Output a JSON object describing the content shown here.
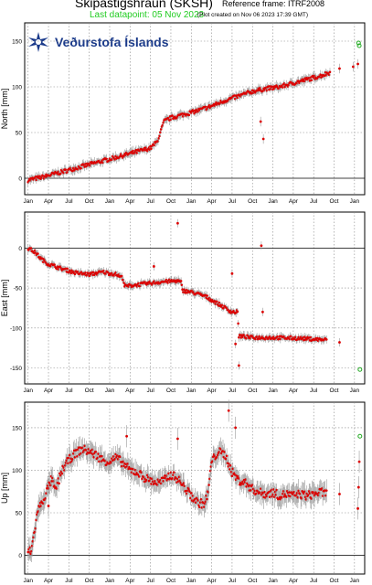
{
  "header": {
    "title": "Skipastigshraun (SKSH)",
    "reference_frame": "Reference frame: ITRF2008",
    "last_datapoint": "Last datapoint: 05 Nov 2023",
    "plot_created": "(Plot created on Nov 06 2023 17:39 GMT)",
    "logo_text": "Veðurstofa Íslands"
  },
  "colors": {
    "data": "#dd0000",
    "errorbar": "#9a9a9a",
    "latest": "#22aa22",
    "logo": "#1a3a8a",
    "last_datapoint_text": "#22cc22"
  },
  "chart_data": [
    {
      "type": "scatter",
      "ylabel": "North [mm]",
      "x_ticks": [
        "Jan",
        "Apr",
        "Jul",
        "Oct",
        "Jan",
        "Apr",
        "Jul",
        "Oct",
        "Jan",
        "Apr",
        "Jul",
        "Oct"
      ],
      "y_ticks": [
        0,
        50,
        100,
        150
      ],
      "ylim": [
        -18,
        170
      ],
      "grid": true,
      "series_points": [
        [
          0,
          -2
        ],
        [
          2,
          1
        ],
        [
          4,
          5
        ],
        [
          6,
          9
        ],
        [
          8,
          13
        ],
        [
          10,
          17
        ],
        [
          12,
          21
        ],
        [
          14,
          25
        ],
        [
          16,
          29
        ],
        [
          18,
          33
        ],
        [
          19,
          40
        ],
        [
          20,
          62
        ],
        [
          21,
          66
        ],
        [
          23,
          70
        ],
        [
          25,
          74
        ],
        [
          27,
          79
        ],
        [
          29,
          85
        ],
        [
          31,
          90
        ],
        [
          33,
          95
        ],
        [
          35,
          98
        ],
        [
          37,
          100
        ],
        [
          39,
          104
        ],
        [
          41,
          108
        ],
        [
          43,
          112
        ],
        [
          44.5,
          116
        ]
      ],
      "outliers": [
        [
          45.8,
          120
        ],
        [
          47.8,
          122
        ],
        [
          48.5,
          125
        ],
        [
          34.2,
          62
        ],
        [
          34.6,
          43
        ]
      ],
      "latest": [
        [
          48.6,
          148
        ],
        [
          48.7,
          145
        ]
      ],
      "x_range_months": [
        -0.5,
        49.5
      ]
    },
    {
      "type": "scatter",
      "ylabel": "East [mm]",
      "x_ticks": [
        "Jan",
        "Apr",
        "Jul",
        "Oct",
        "Jan",
        "Apr",
        "Jul",
        "Oct",
        "Jan",
        "Apr",
        "Jul",
        "Oct"
      ],
      "y_ticks": [
        -150,
        -100,
        -50,
        0
      ],
      "ylim": [
        -170,
        45
      ],
      "grid": true,
      "series_points": [
        [
          0,
          0
        ],
        [
          1,
          -5
        ],
        [
          2,
          -14
        ],
        [
          3,
          -20
        ],
        [
          5,
          -26
        ],
        [
          7,
          -31
        ],
        [
          9,
          -33
        ],
        [
          11,
          -30
        ],
        [
          13,
          -33
        ],
        [
          14,
          -38
        ],
        [
          14.2,
          -48
        ],
        [
          16,
          -46
        ],
        [
          18,
          -44
        ],
        [
          20,
          -42
        ],
        [
          22,
          -41
        ],
        [
          22.5,
          -43
        ],
        [
          22.7,
          -53
        ],
        [
          24,
          -55
        ],
        [
          26,
          -60
        ],
        [
          28,
          -70
        ],
        [
          30,
          -80
        ],
        [
          30.8,
          -80
        ],
        [
          31,
          -110
        ],
        [
          33,
          -112
        ],
        [
          36,
          -112
        ],
        [
          40,
          -113
        ],
        [
          44,
          -115
        ]
      ],
      "outliers": [
        [
          22,
          31
        ],
        [
          18.5,
          -23
        ],
        [
          30,
          -32
        ],
        [
          31,
          -147
        ],
        [
          34.3,
          3
        ],
        [
          34.5,
          -80
        ],
        [
          30.5,
          -120
        ],
        [
          45.8,
          -118
        ]
      ],
      "latest": [
        [
          48.8,
          -152
        ]
      ],
      "x_range_months": [
        -0.5,
        49.5
      ]
    },
    {
      "type": "scatter",
      "ylabel": "Up [mm]",
      "x_ticks": [
        "Jan",
        "Apr",
        "Jul",
        "Oct",
        "Jan",
        "Apr",
        "Jul",
        "Oct",
        "Jan",
        "Apr",
        "Jul",
        "Oct"
      ],
      "y_ticks": [
        0,
        50,
        100,
        150
      ],
      "ylim": [
        -22,
        180
      ],
      "grid": true,
      "series_points": [
        [
          0,
          5
        ],
        [
          0.5,
          5
        ],
        [
          1,
          30
        ],
        [
          1.5,
          55
        ],
        [
          2,
          60
        ],
        [
          3,
          80
        ],
        [
          3.5,
          90
        ],
        [
          4,
          75
        ],
        [
          5,
          100
        ],
        [
          6,
          112
        ],
        [
          7,
          120
        ],
        [
          8,
          125
        ],
        [
          9,
          122
        ],
        [
          10,
          118
        ],
        [
          11,
          112
        ],
        [
          12,
          110
        ],
        [
          13,
          115
        ],
        [
          14,
          108
        ],
        [
          15,
          100
        ],
        [
          16,
          98
        ],
        [
          17,
          92
        ],
        [
          18,
          88
        ],
        [
          19,
          85
        ],
        [
          20,
          88
        ],
        [
          21,
          95
        ],
        [
          22,
          90
        ],
        [
          23,
          80
        ],
        [
          24,
          70
        ],
        [
          25,
          62
        ],
        [
          26,
          60
        ],
        [
          26.5,
          75
        ],
        [
          27,
          110
        ],
        [
          28,
          122
        ],
        [
          29,
          118
        ],
        [
          30,
          98
        ],
        [
          31,
          88
        ],
        [
          32,
          85
        ],
        [
          33,
          78
        ],
        [
          34,
          74
        ],
        [
          35,
          72
        ],
        [
          36,
          74
        ],
        [
          37,
          70
        ],
        [
          38,
          72
        ],
        [
          39,
          70
        ],
        [
          40,
          72
        ],
        [
          41,
          70
        ],
        [
          42,
          72
        ],
        [
          43,
          74
        ],
        [
          44,
          72
        ]
      ],
      "outliers": [
        [
          14.5,
          140
        ],
        [
          22,
          137
        ],
        [
          29.5,
          170
        ],
        [
          30.5,
          150
        ],
        [
          3,
          58
        ],
        [
          45.8,
          72
        ],
        [
          48.5,
          55
        ],
        [
          48.6,
          80
        ],
        [
          48.7,
          110
        ]
      ],
      "latest": [
        [
          48.8,
          140
        ]
      ],
      "x_range_months": [
        -0.5,
        49.5
      ]
    }
  ]
}
